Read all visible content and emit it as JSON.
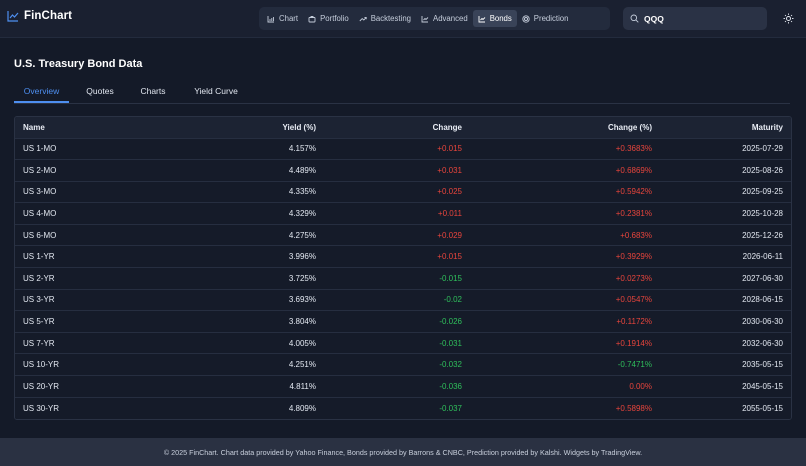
{
  "app": {
    "name": "FinChart"
  },
  "nav": {
    "items": [
      {
        "label": "Chart",
        "icon": "bar-chart-icon",
        "active": false
      },
      {
        "label": "Portfolio",
        "icon": "briefcase-icon",
        "active": false
      },
      {
        "label": "Backtesting",
        "icon": "trending-up-icon",
        "active": false
      },
      {
        "label": "Advanced",
        "icon": "line-chart-icon",
        "active": false
      },
      {
        "label": "Bonds",
        "icon": "line-chart-icon",
        "active": true
      },
      {
        "label": "Prediction",
        "icon": "target-icon",
        "active": false
      }
    ]
  },
  "search": {
    "value": "QQQ",
    "icon": "search-icon"
  },
  "theme_toggle": {
    "icon": "sun-icon"
  },
  "page": {
    "title": "U.S. Treasury Bond Data"
  },
  "tabs": [
    {
      "label": "Overview",
      "active": true
    },
    {
      "label": "Quotes",
      "active": false
    },
    {
      "label": "Charts",
      "active": false
    },
    {
      "label": "Yield Curve",
      "active": false
    }
  ],
  "table": {
    "headers": {
      "name": "Name",
      "yield": "Yield (%)",
      "change": "Change",
      "change_pct": "Change (%)",
      "maturity": "Maturity"
    },
    "rows": [
      {
        "name": "US 1-MO",
        "yield": "4.157%",
        "change": "+0.015",
        "change_pct": "+0.3683%",
        "maturity": "2025-07-29",
        "change_dir": "pos",
        "pct_dir": "pos"
      },
      {
        "name": "US 2-MO",
        "yield": "4.489%",
        "change": "+0.031",
        "change_pct": "+0.6869%",
        "maturity": "2025-08-26",
        "change_dir": "pos",
        "pct_dir": "pos"
      },
      {
        "name": "US 3-MO",
        "yield": "4.335%",
        "change": "+0.025",
        "change_pct": "+0.5942%",
        "maturity": "2025-09-25",
        "change_dir": "pos",
        "pct_dir": "pos"
      },
      {
        "name": "US 4-MO",
        "yield": "4.329%",
        "change": "+0.011",
        "change_pct": "+0.2381%",
        "maturity": "2025-10-28",
        "change_dir": "pos",
        "pct_dir": "pos"
      },
      {
        "name": "US 6-MO",
        "yield": "4.275%",
        "change": "+0.029",
        "change_pct": "+0.683%",
        "maturity": "2025-12-26",
        "change_dir": "pos",
        "pct_dir": "pos"
      },
      {
        "name": "US 1-YR",
        "yield": "3.996%",
        "change": "+0.015",
        "change_pct": "+0.3929%",
        "maturity": "2026-06-11",
        "change_dir": "pos",
        "pct_dir": "pos"
      },
      {
        "name": "US 2-YR",
        "yield": "3.725%",
        "change": "-0.015",
        "change_pct": "+0.0273%",
        "maturity": "2027-06-30",
        "change_dir": "neg",
        "pct_dir": "pos"
      },
      {
        "name": "US 3-YR",
        "yield": "3.693%",
        "change": "-0.02",
        "change_pct": "+0.0547%",
        "maturity": "2028-06-15",
        "change_dir": "neg",
        "pct_dir": "pos"
      },
      {
        "name": "US 5-YR",
        "yield": "3.804%",
        "change": "-0.026",
        "change_pct": "+0.1172%",
        "maturity": "2030-06-30",
        "change_dir": "neg",
        "pct_dir": "pos"
      },
      {
        "name": "US 7-YR",
        "yield": "4.005%",
        "change": "-0.031",
        "change_pct": "+0.1914%",
        "maturity": "2032-06-30",
        "change_dir": "neg",
        "pct_dir": "pos"
      },
      {
        "name": "US 10-YR",
        "yield": "4.251%",
        "change": "-0.032",
        "change_pct": "-0.7471%",
        "maturity": "2035-05-15",
        "change_dir": "neg",
        "pct_dir": "neg"
      },
      {
        "name": "US 20-YR",
        "yield": "4.811%",
        "change": "-0.036",
        "change_pct": "0.00%",
        "maturity": "2045-05-15",
        "change_dir": "neg",
        "pct_dir": "pos"
      },
      {
        "name": "US 30-YR",
        "yield": "4.809%",
        "change": "-0.037",
        "change_pct": "+0.5898%",
        "maturity": "2055-05-15",
        "change_dir": "neg",
        "pct_dir": "pos"
      }
    ]
  },
  "colors": {
    "positive": "#e8453c",
    "negative": "#2fbf5b",
    "accent": "#4e8ff0"
  },
  "footer": {
    "text": "© 2025 FinChart. Chart data provided by Yahoo Finance, Bonds provided by Barrons & CNBC, Prediction provided by Kalshi. Widgets by TradingView."
  }
}
